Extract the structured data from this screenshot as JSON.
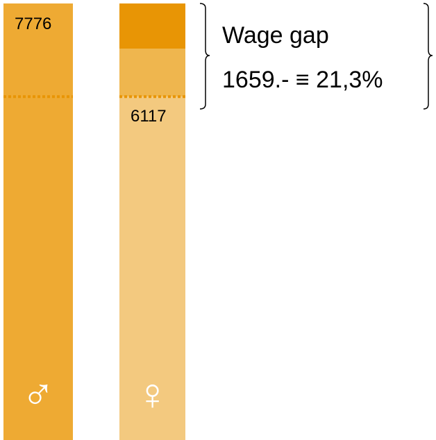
{
  "chart_data": {
    "type": "bar",
    "categories": [
      "♂",
      "♀"
    ],
    "values": [
      7776,
      6117
    ],
    "colors": [
      "#eeaa33",
      "#f3c97f"
    ],
    "gap_color": "#efb64e",
    "annotation_title": "Wage gap",
    "annotation_text": "1659.- ≡ 21,3%"
  }
}
